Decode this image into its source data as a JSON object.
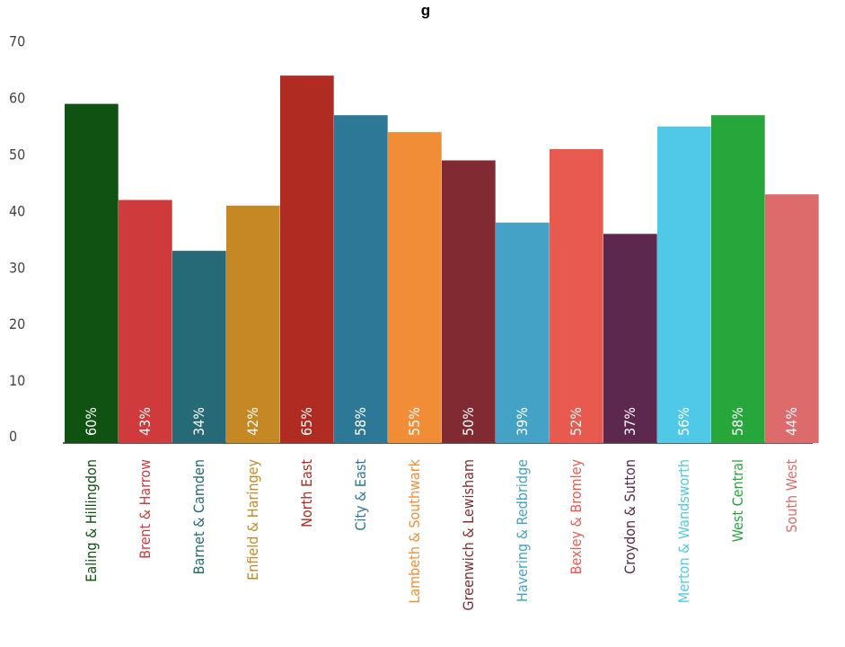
{
  "chart_data": {
    "type": "bar",
    "title": "g",
    "xlabel": "",
    "ylabel": "",
    "ylim": [
      0,
      70
    ],
    "y_ticks": [
      0,
      10,
      20,
      30,
      40,
      50,
      60,
      70
    ],
    "grid": false,
    "legend": "none",
    "categories": [
      "Ealing & Hillingdon",
      "Brent & Harrow",
      "Barnet & Camden",
      "Enfield & Haringey",
      "North East",
      "City & East",
      "Lambeth & Southwark",
      "Greenwich & Lewisham",
      "Havering & Redbridge",
      "Bexley & Bromley",
      "Croydon & Sutton",
      "Merton & Wandsworth",
      "West Central",
      "South West"
    ],
    "values": [
      60,
      43,
      34,
      42,
      65,
      58,
      55,
      50,
      39,
      52,
      37,
      56,
      58,
      44
    ],
    "data_labels": [
      "60%",
      "43%",
      "34%",
      "42%",
      "65%",
      "58%",
      "55%",
      "50%",
      "39%",
      "52%",
      "37%",
      "56%",
      "58%",
      "44%"
    ],
    "colors": [
      "#0f5212",
      "#cf3a3c",
      "#266a78",
      "#c68824",
      "#b02b22",
      "#2e7897",
      "#f28d37",
      "#822a31",
      "#43a2c6",
      "#e85a4f",
      "#5c284e",
      "#4fc9e7",
      "#27a63c",
      "#de6b6b"
    ]
  }
}
